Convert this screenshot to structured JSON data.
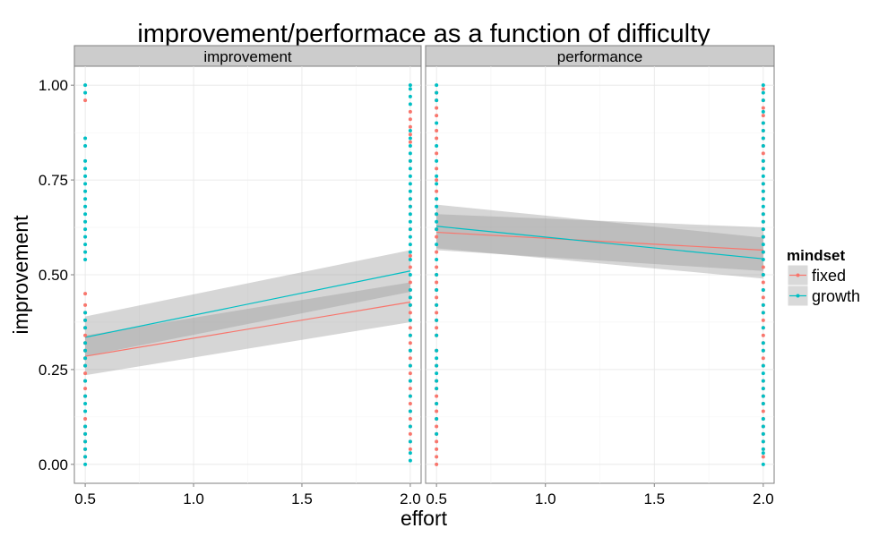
{
  "chart_data": {
    "type": "scatter",
    "title": "improvement/performace as a function of difficulty",
    "xlabel": "effort",
    "ylabel": "improvement",
    "xlim": [
      0.45,
      2.05
    ],
    "ylim": [
      -0.05,
      1.05
    ],
    "x_ticks": [
      "0.5",
      "1.0",
      "1.5",
      "2.0"
    ],
    "y_ticks": [
      "0.00",
      "0.25",
      "0.50",
      "0.75",
      "1.00"
    ],
    "grid": true,
    "legend": {
      "title": "mindset",
      "position": "right",
      "entries": [
        {
          "name": "fixed",
          "color": "#F8766D"
        },
        {
          "name": "growth",
          "color": "#00BFC4"
        }
      ]
    },
    "facets": [
      {
        "label": "improvement",
        "series": [
          {
            "name": "fixed",
            "color": "#F8766D",
            "fit": {
              "x": [
                0.5,
                2.0
              ],
              "y": [
                0.285,
                0.428
              ]
            },
            "band": {
              "x": [
                0.5,
                2.0
              ],
              "lower": [
                0.235,
                0.375
              ],
              "upper": [
                0.34,
                0.48
              ]
            },
            "points_x05": [
              0.96,
              0.45,
              0.42,
              0.4,
              0.38,
              0.36,
              0.34,
              0.32,
              0.3,
              0.28,
              0.26,
              0.24,
              0.22,
              0.2,
              0.18,
              0.12,
              0.1,
              0.08,
              0.06,
              0.04,
              0.02
            ],
            "points_x20": [
              0.93,
              0.91,
              0.89,
              0.87,
              0.85,
              0.8,
              0.7,
              0.68,
              0.62,
              0.55,
              0.52,
              0.48,
              0.46,
              0.44,
              0.42,
              0.4,
              0.38,
              0.36,
              0.34,
              0.32,
              0.3,
              0.28,
              0.26,
              0.24,
              0.22,
              0.2,
              0.18,
              0.16,
              0.14,
              0.12,
              0.1,
              0.08,
              0.06,
              0.04
            ]
          },
          {
            "name": "growth",
            "color": "#00BFC4",
            "fit": {
              "x": [
                0.5,
                2.0
              ],
              "y": [
                0.335,
                0.51
              ]
            },
            "band": {
              "x": [
                0.5,
                2.0
              ],
              "lower": [
                0.285,
                0.455
              ],
              "upper": [
                0.39,
                0.565
              ]
            },
            "points_x05": [
              1.0,
              0.98,
              0.86,
              0.84,
              0.8,
              0.78,
              0.76,
              0.74,
              0.72,
              0.7,
              0.68,
              0.66,
              0.64,
              0.62,
              0.6,
              0.58,
              0.56,
              0.54,
              0.4,
              0.38,
              0.36,
              0.32,
              0.3,
              0.28,
              0.26,
              0.22,
              0.18,
              0.16,
              0.14,
              0.1,
              0.08,
              0.06,
              0.04,
              0.02,
              0.0
            ],
            "points_x20": [
              1.0,
              0.99,
              0.97,
              0.95,
              0.88,
              0.86,
              0.84,
              0.82,
              0.8,
              0.78,
              0.76,
              0.74,
              0.72,
              0.7,
              0.68,
              0.66,
              0.64,
              0.62,
              0.6,
              0.58,
              0.56,
              0.54,
              0.5,
              0.46,
              0.44,
              0.42,
              0.38,
              0.34,
              0.3,
              0.26,
              0.22,
              0.18,
              0.14,
              0.1,
              0.06,
              0.03,
              0.01
            ]
          }
        ]
      },
      {
        "label": "performance",
        "series": [
          {
            "name": "fixed",
            "color": "#F8766D",
            "fit": {
              "x": [
                0.5,
                2.0
              ],
              "y": [
                0.612,
                0.565
              ]
            },
            "band": {
              "x": [
                0.5,
                2.0
              ],
              "lower": [
                0.565,
                0.51
              ],
              "upper": [
                0.66,
                0.625
              ]
            },
            "points_x05": [
              0.98,
              0.96,
              0.94,
              0.92,
              0.88,
              0.86,
              0.82,
              0.78,
              0.75,
              0.72,
              0.7,
              0.66,
              0.62,
              0.6,
              0.56,
              0.52,
              0.5,
              0.48,
              0.46,
              0.44,
              0.42,
              0.4,
              0.38,
              0.36,
              0.34,
              0.3,
              0.26,
              0.22,
              0.2,
              0.18,
              0.16,
              0.14,
              0.12,
              0.1,
              0.08,
              0.06,
              0.04,
              0.02,
              0.0
            ],
            "points_x20": [
              0.99,
              0.96,
              0.94,
              0.92,
              0.9,
              0.88,
              0.86,
              0.84,
              0.82,
              0.8,
              0.78,
              0.74,
              0.72,
              0.7,
              0.66,
              0.64,
              0.62,
              0.6,
              0.56,
              0.52,
              0.5,
              0.48,
              0.46,
              0.44,
              0.42,
              0.4,
              0.38,
              0.36,
              0.34,
              0.32,
              0.3,
              0.28,
              0.26,
              0.22,
              0.2,
              0.18,
              0.16,
              0.14,
              0.12,
              0.1,
              0.08,
              0.06,
              0.04,
              0.02
            ]
          },
          {
            "name": "growth",
            "color": "#00BFC4",
            "fit": {
              "x": [
                0.5,
                2.0
              ],
              "y": [
                0.628,
                0.542
              ]
            },
            "band": {
              "x": [
                0.5,
                2.0
              ],
              "lower": [
                0.57,
                0.49
              ],
              "upper": [
                0.685,
                0.598
              ]
            },
            "points_x05": [
              1.0,
              0.98,
              0.96,
              0.9,
              0.84,
              0.8,
              0.76,
              0.74,
              0.7,
              0.68,
              0.66,
              0.64,
              0.62,
              0.58,
              0.54,
              0.5,
              0.46,
              0.42,
              0.38,
              0.34,
              0.3,
              0.28,
              0.26,
              0.24,
              0.22,
              0.2,
              0.16,
              0.12,
              0.08
            ],
            "points_x20": [
              1.0,
              0.98,
              0.96,
              0.93,
              0.9,
              0.88,
              0.86,
              0.84,
              0.8,
              0.78,
              0.76,
              0.74,
              0.72,
              0.7,
              0.68,
              0.66,
              0.64,
              0.62,
              0.6,
              0.58,
              0.56,
              0.54,
              0.5,
              0.46,
              0.42,
              0.4,
              0.36,
              0.32,
              0.3,
              0.26,
              0.24,
              0.22,
              0.2,
              0.18,
              0.16,
              0.12,
              0.1,
              0.08,
              0.06,
              0.04,
              0.03,
              0.0
            ]
          }
        ]
      }
    ]
  }
}
